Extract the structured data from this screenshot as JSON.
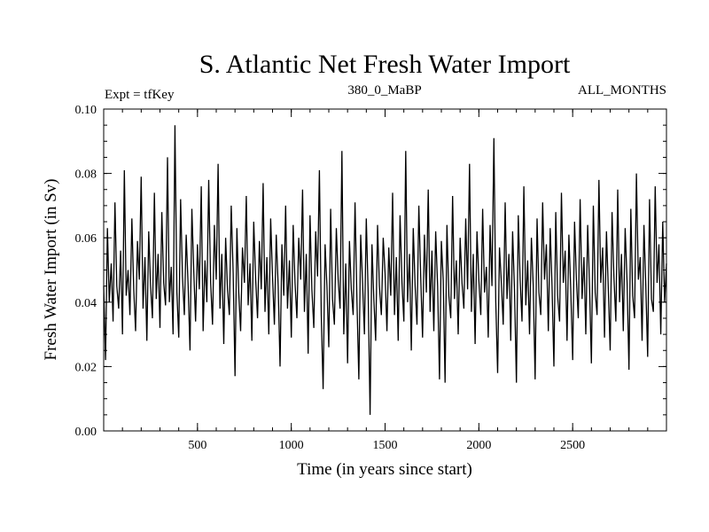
{
  "chart_data": {
    "type": "line",
    "title": "S. Atlantic Net Fresh Water Import",
    "subtitle_left": "Expt = tfKey",
    "subtitle_center": "380_0_MaBP",
    "subtitle_right": "ALL_MONTHS",
    "xlabel": "Time (in years since start)",
    "ylabel": "Fresh Water Import (in Sv)",
    "xlim": [
      0,
      3000
    ],
    "ylim": [
      0.0,
      0.1
    ],
    "x_ticks": [
      500,
      1000,
      1500,
      2000,
      2500
    ],
    "x_tick_labels": [
      "500",
      "1000",
      "1500",
      "2000",
      "2500"
    ],
    "y_ticks": [
      0.0,
      0.02,
      0.04,
      0.06,
      0.08,
      0.1
    ],
    "y_tick_labels": [
      "0.00",
      "0.02",
      "0.04",
      "0.06",
      "0.08",
      "0.10"
    ],
    "grid": false,
    "series": [
      {
        "color": "#000000",
        "x": [
          0,
          10,
          20,
          30,
          40,
          50,
          60,
          70,
          80,
          90,
          100,
          110,
          120,
          130,
          140,
          150,
          160,
          170,
          180,
          190,
          200,
          210,
          220,
          230,
          240,
          250,
          260,
          270,
          280,
          290,
          300,
          310,
          320,
          330,
          340,
          350,
          360,
          370,
          380,
          390,
          400,
          410,
          420,
          430,
          440,
          450,
          460,
          470,
          480,
          490,
          500,
          510,
          520,
          530,
          540,
          550,
          560,
          570,
          580,
          590,
          600,
          610,
          620,
          630,
          640,
          650,
          660,
          670,
          680,
          690,
          700,
          710,
          720,
          730,
          740,
          750,
          760,
          770,
          780,
          790,
          800,
          810,
          820,
          830,
          840,
          850,
          860,
          870,
          880,
          890,
          900,
          910,
          920,
          930,
          940,
          950,
          960,
          970,
          980,
          990,
          1000,
          1010,
          1020,
          1030,
          1040,
          1050,
          1060,
          1070,
          1080,
          1090,
          1100,
          1110,
          1120,
          1130,
          1140,
          1150,
          1160,
          1170,
          1180,
          1190,
          1200,
          1210,
          1220,
          1230,
          1240,
          1250,
          1260,
          1270,
          1280,
          1290,
          1300,
          1310,
          1320,
          1330,
          1340,
          1350,
          1360,
          1370,
          1380,
          1390,
          1400,
          1410,
          1420,
          1430,
          1440,
          1450,
          1460,
          1470,
          1480,
          1490,
          1500,
          1510,
          1520,
          1530,
          1540,
          1550,
          1560,
          1570,
          1580,
          1590,
          1600,
          1610,
          1620,
          1630,
          1640,
          1650,
          1660,
          1670,
          1680,
          1690,
          1700,
          1710,
          1720,
          1730,
          1740,
          1750,
          1760,
          1770,
          1780,
          1790,
          1800,
          1810,
          1820,
          1830,
          1840,
          1850,
          1860,
          1870,
          1880,
          1890,
          1900,
          1910,
          1920,
          1930,
          1940,
          1950,
          1960,
          1970,
          1980,
          1990,
          2000,
          2010,
          2020,
          2030,
          2040,
          2050,
          2060,
          2070,
          2080,
          2090,
          2100,
          2110,
          2120,
          2130,
          2140,
          2150,
          2160,
          2170,
          2180,
          2190,
          2200,
          2210,
          2220,
          2230,
          2240,
          2250,
          2260,
          2270,
          2280,
          2290,
          2300,
          2310,
          2320,
          2330,
          2340,
          2350,
          2360,
          2370,
          2380,
          2390,
          2400,
          2410,
          2420,
          2430,
          2440,
          2450,
          2460,
          2470,
          2480,
          2490,
          2500,
          2510,
          2520,
          2530,
          2540,
          2550,
          2560,
          2570,
          2580,
          2590,
          2600,
          2610,
          2620,
          2630,
          2640,
          2650,
          2660,
          2670,
          2680,
          2690,
          2700,
          2710,
          2720,
          2730,
          2740,
          2750,
          2760,
          2770,
          2780,
          2790,
          2800,
          2810,
          2820,
          2830,
          2840,
          2850,
          2860,
          2870,
          2880,
          2890,
          2900,
          2910,
          2920,
          2930,
          2940,
          2950,
          2960,
          2970,
          2980,
          2990,
          3000
        ],
        "y": [
          0.045,
          0.022,
          0.063,
          0.04,
          0.052,
          0.034,
          0.071,
          0.045,
          0.038,
          0.056,
          0.03,
          0.081,
          0.042,
          0.05,
          0.036,
          0.066,
          0.044,
          0.031,
          0.059,
          0.047,
          0.079,
          0.038,
          0.054,
          0.028,
          0.062,
          0.045,
          0.035,
          0.074,
          0.041,
          0.055,
          0.032,
          0.068,
          0.046,
          0.039,
          0.085,
          0.04,
          0.051,
          0.03,
          0.095,
          0.043,
          0.029,
          0.072,
          0.048,
          0.036,
          0.061,
          0.045,
          0.025,
          0.069,
          0.05,
          0.034,
          0.058,
          0.044,
          0.076,
          0.031,
          0.053,
          0.04,
          0.078,
          0.046,
          0.033,
          0.064,
          0.047,
          0.083,
          0.038,
          0.055,
          0.027,
          0.06,
          0.044,
          0.036,
          0.07,
          0.049,
          0.017,
          0.063,
          0.043,
          0.031,
          0.057,
          0.046,
          0.073,
          0.039,
          0.052,
          0.028,
          0.065,
          0.047,
          0.035,
          0.059,
          0.044,
          0.077,
          0.037,
          0.054,
          0.03,
          0.066,
          0.048,
          0.033,
          0.061,
          0.045,
          0.02,
          0.058,
          0.042,
          0.07,
          0.038,
          0.053,
          0.029,
          0.064,
          0.046,
          0.035,
          0.06,
          0.047,
          0.075,
          0.037,
          0.055,
          0.024,
          0.067,
          0.044,
          0.032,
          0.062,
          0.048,
          0.081,
          0.036,
          0.013,
          0.058,
          0.045,
          0.026,
          0.069,
          0.041,
          0.033,
          0.063,
          0.047,
          0.038,
          0.087,
          0.03,
          0.052,
          0.021,
          0.059,
          0.044,
          0.036,
          0.071,
          0.04,
          0.016,
          0.061,
          0.046,
          0.03,
          0.066,
          0.043,
          0.005,
          0.058,
          0.041,
          0.028,
          0.064,
          0.045,
          0.036,
          0.06,
          0.049,
          0.031,
          0.057,
          0.042,
          0.074,
          0.036,
          0.054,
          0.028,
          0.067,
          0.046,
          0.034,
          0.087,
          0.04,
          0.055,
          0.025,
          0.063,
          0.045,
          0.033,
          0.07,
          0.048,
          0.029,
          0.061,
          0.043,
          0.075,
          0.037,
          0.056,
          0.031,
          0.062,
          0.045,
          0.016,
          0.059,
          0.047,
          0.015,
          0.064,
          0.042,
          0.035,
          0.073,
          0.041,
          0.053,
          0.03,
          0.06,
          0.046,
          0.038,
          0.066,
          0.044,
          0.083,
          0.037,
          0.055,
          0.027,
          0.062,
          0.047,
          0.036,
          0.069,
          0.043,
          0.051,
          0.029,
          0.064,
          0.045,
          0.091,
          0.04,
          0.018,
          0.057,
          0.046,
          0.033,
          0.071,
          0.041,
          0.055,
          0.028,
          0.062,
          0.044,
          0.015,
          0.067,
          0.047,
          0.034,
          0.076,
          0.039,
          0.053,
          0.03,
          0.06,
          0.045,
          0.016,
          0.066,
          0.043,
          0.036,
          0.071,
          0.047,
          0.058,
          0.031,
          0.063,
          0.045,
          0.02,
          0.068,
          0.042,
          0.034,
          0.074,
          0.046,
          0.056,
          0.028,
          0.061,
          0.044,
          0.022,
          0.065,
          0.047,
          0.035,
          0.072,
          0.041,
          0.054,
          0.03,
          0.064,
          0.045,
          0.021,
          0.07,
          0.043,
          0.036,
          0.078,
          0.046,
          0.057,
          0.029,
          0.062,
          0.044,
          0.025,
          0.068,
          0.048,
          0.034,
          0.075,
          0.04,
          0.055,
          0.031,
          0.063,
          0.046,
          0.019,
          0.069,
          0.042,
          0.035,
          0.08,
          0.047,
          0.054,
          0.028,
          0.064,
          0.045,
          0.023,
          0.072,
          0.041,
          0.037,
          0.076,
          0.046,
          0.058,
          0.03,
          0.065,
          0.04,
          0.052
        ]
      }
    ]
  }
}
